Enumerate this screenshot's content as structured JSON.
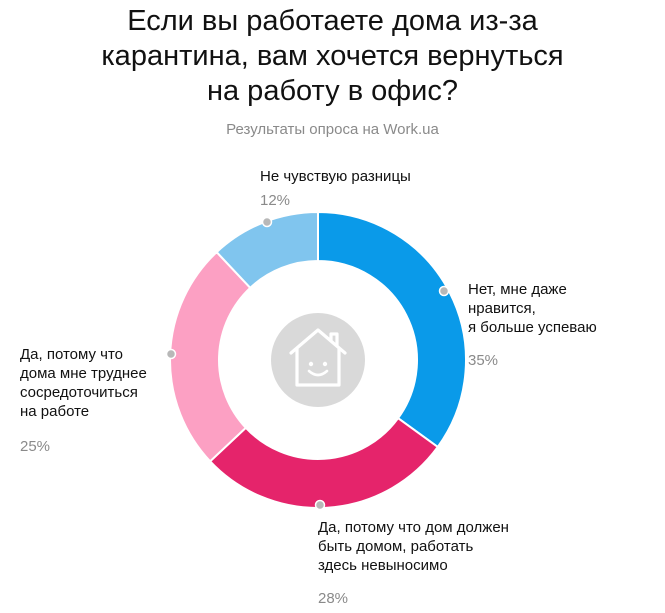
{
  "title_lines": [
    "Если вы работаете дома из-за",
    "карантина, вам хочется вернуться",
    "на работу в офис?"
  ],
  "subtitle": "Результаты опроса на Work.ua",
  "center_icon": "smiling-house-icon",
  "chart_data": {
    "type": "pie",
    "donut": true,
    "start": "top",
    "direction": "clockwise",
    "slices": [
      {
        "label_lines": [
          "Нет, мне даже",
          "нравится,",
          "я больше успеваю"
        ],
        "value": 35,
        "value_label": "35%",
        "color": "#0a9ae9"
      },
      {
        "label_lines": [
          "Да, потому что дом должен",
          "быть домом, работать",
          "здесь невыносимо"
        ],
        "value": 28,
        "value_label": "28%",
        "color": "#e5246b"
      },
      {
        "label_lines": [
          "Да, потому что",
          "дома мне труднее",
          "сосредоточиться",
          "на работе"
        ],
        "value": 25,
        "value_label": "25%",
        "color": "#fca0c3"
      },
      {
        "label_lines": [
          "Не чувствую разницы"
        ],
        "value": 12,
        "value_label": "12%",
        "color": "#80c5ee"
      }
    ]
  }
}
